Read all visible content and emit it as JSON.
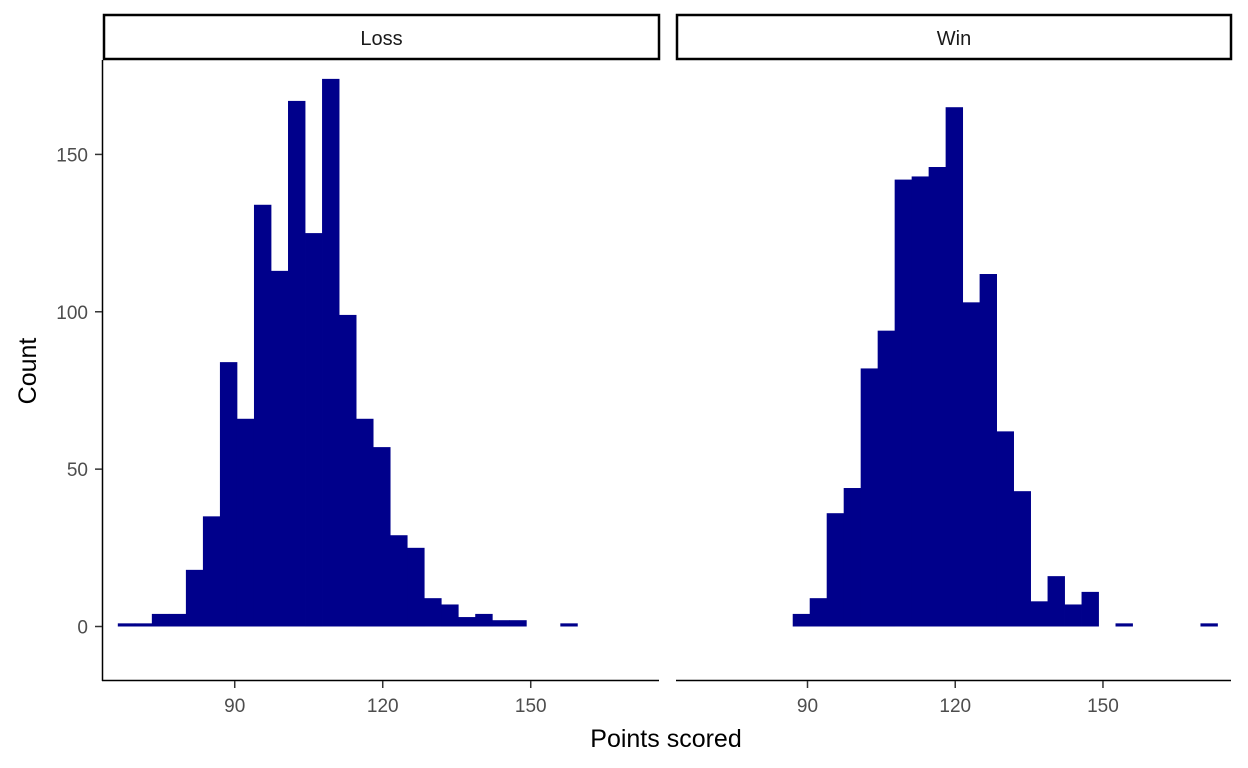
{
  "chart_data": {
    "type": "bar",
    "xlabel": "Points scored",
    "ylabel": "Count",
    "bar_color": "#00008b",
    "bin_width": 3.45,
    "xlim": [
      63.5,
      176
    ],
    "ylim": [
      -17,
      180
    ],
    "x_ticks": [
      90,
      120,
      150
    ],
    "y_ticks": [
      0,
      50,
      100,
      150
    ],
    "facets": [
      {
        "name": "Loss",
        "bin_start": 66.3,
        "counts": [
          1,
          1,
          4,
          4,
          18,
          35,
          84,
          66,
          134,
          113,
          167,
          125,
          174,
          99,
          66,
          57,
          29,
          25,
          9,
          7,
          3,
          4,
          2,
          2,
          0,
          0,
          1
        ]
      },
      {
        "name": "Win",
        "bin_start": 87.0,
        "counts": [
          4,
          9,
          36,
          44,
          82,
          94,
          142,
          143,
          146,
          165,
          103,
          112,
          62,
          43,
          8,
          16,
          7,
          11,
          0,
          1,
          0,
          0,
          0,
          0,
          1
        ]
      }
    ]
  }
}
